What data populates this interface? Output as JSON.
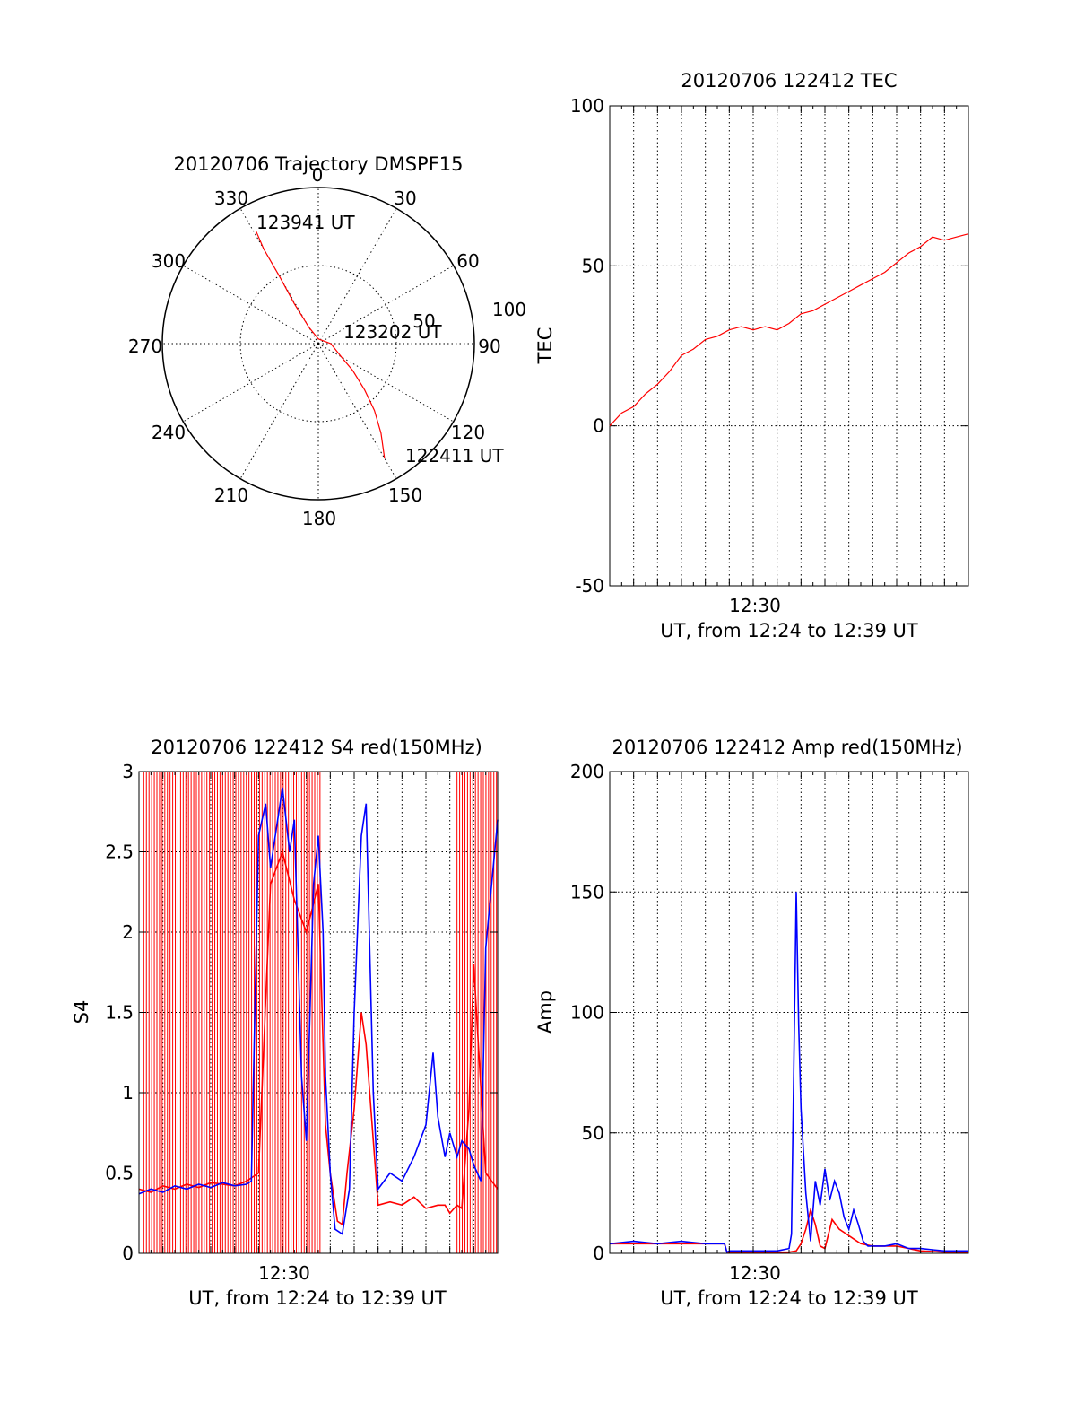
{
  "colors": {
    "red": "#ff0000",
    "blue": "#0000ff",
    "axis": "#000000"
  },
  "chart_data": [
    {
      "type": "polar",
      "title": "20120706 Trajectory DMSPF15",
      "angle_labels": [
        "0",
        "30",
        "60",
        "90",
        "120",
        "150",
        "180",
        "210",
        "240",
        "270",
        "300",
        "330"
      ],
      "radial_labels": [
        "50",
        "100"
      ],
      "rlim": [
        0,
        100
      ],
      "grid": true,
      "trajectory": [
        {
          "az": 150,
          "r": 85
        },
        {
          "az": 145,
          "r": 70
        },
        {
          "az": 140,
          "r": 56
        },
        {
          "az": 135,
          "r": 42
        },
        {
          "az": 128,
          "r": 28
        },
        {
          "az": 120,
          "r": 17
        },
        {
          "az": 90,
          "r": 8
        },
        {
          "az": 0,
          "r": 3
        },
        {
          "az": 330,
          "r": 12
        },
        {
          "az": 329,
          "r": 30
        },
        {
          "az": 330,
          "r": 50
        },
        {
          "az": 330,
          "r": 70
        },
        {
          "az": 331,
          "r": 82
        }
      ],
      "annotations": [
        "123941 UT",
        "123202 UT",
        "122411 UT"
      ]
    },
    {
      "type": "line",
      "title": "20120706 122412 TEC",
      "ylabel": "TEC",
      "xlabel": "UT, from 12:24 to 12:39 UT",
      "xticklabels": [
        "12:30"
      ],
      "xlim": [
        0,
        15
      ],
      "ylim": [
        -50,
        100
      ],
      "yticks": [
        -50,
        0,
        50,
        100
      ],
      "grid": true,
      "series": [
        {
          "color": "red",
          "x": [
            0.0,
            0.5,
            1.0,
            1.5,
            2.0,
            2.5,
            3.0,
            3.5,
            4.0,
            4.5,
            5.0,
            5.5,
            6.0,
            6.5,
            7.0,
            7.5,
            8.0,
            8.5,
            9.0,
            9.5,
            10.0,
            10.5,
            11.0,
            11.5,
            12.0,
            12.5,
            13.0,
            13.5,
            14.0,
            14.5,
            15.0
          ],
          "values": [
            0,
            4,
            6,
            10,
            13,
            17,
            22,
            24,
            27,
            28,
            30,
            31,
            30,
            31,
            30,
            32,
            35,
            36,
            38,
            40,
            42,
            44,
            46,
            48,
            51,
            54,
            56,
            59,
            58,
            59,
            60
          ]
        }
      ]
    },
    {
      "type": "line",
      "title": "20120706 122412 S4 red(150MHz)",
      "ylabel": "S4",
      "xlabel": "UT, from 12:24 to 12:39 UT",
      "xticklabels": [
        "12:30"
      ],
      "xlim": [
        0,
        15
      ],
      "ylim": [
        0,
        3
      ],
      "yticks": [
        0,
        0.5,
        1,
        1.5,
        2,
        2.5,
        3
      ],
      "yticklabels": [
        "0",
        "0.5",
        "1",
        "1.5",
        "2",
        "2.5",
        "3"
      ],
      "grid": true,
      "series": [
        {
          "color": "red",
          "x": [
            0.0,
            0.5,
            1.0,
            1.5,
            2.0,
            2.5,
            3.0,
            3.5,
            4.0,
            4.5,
            5.0,
            5.5,
            6.0,
            6.5,
            7.0,
            7.5,
            7.8,
            8.0,
            8.3,
            8.5,
            8.7,
            9.0,
            9.3,
            9.5,
            10.0,
            10.5,
            11.0,
            11.5,
            12.0,
            12.5,
            12.8,
            13.0,
            13.3,
            13.5,
            13.8,
            14.0,
            14.5,
            15.0
          ],
          "values": [
            0.4,
            0.38,
            0.42,
            0.4,
            0.43,
            0.41,
            0.44,
            0.43,
            0.42,
            0.45,
            0.5,
            2.3,
            2.5,
            2.2,
            2.0,
            2.3,
            0.8,
            0.5,
            0.2,
            0.18,
            0.5,
            0.9,
            1.5,
            1.3,
            0.3,
            0.32,
            0.3,
            0.35,
            0.28,
            0.3,
            0.3,
            0.25,
            0.3,
            0.28,
            0.9,
            1.8,
            0.5,
            0.4
          ]
        },
        {
          "color": "blue",
          "x": [
            0.0,
            0.5,
            1.0,
            1.5,
            2.0,
            2.5,
            3.0,
            3.5,
            4.0,
            4.5,
            4.7,
            5.0,
            5.3,
            5.5,
            5.8,
            6.0,
            6.3,
            6.5,
            6.8,
            7.0,
            7.3,
            7.5,
            7.7,
            7.8,
            8.0,
            8.2,
            8.5,
            8.8,
            9.0,
            9.3,
            9.5,
            9.8,
            10.0,
            10.5,
            11.0,
            11.5,
            12.0,
            12.3,
            12.5,
            12.8,
            13.0,
            13.3,
            13.5,
            13.8,
            14.0,
            14.3,
            14.5,
            15.0
          ],
          "values": [
            0.37,
            0.4,
            0.38,
            0.42,
            0.4,
            0.43,
            0.41,
            0.44,
            0.42,
            0.43,
            0.45,
            2.6,
            2.8,
            2.4,
            2.7,
            2.9,
            2.5,
            2.7,
            1.1,
            0.7,
            2.3,
            2.6,
            2.0,
            1.1,
            0.5,
            0.15,
            0.12,
            0.4,
            1.5,
            2.6,
            2.8,
            1.0,
            0.4,
            0.5,
            0.45,
            0.6,
            0.8,
            1.25,
            0.85,
            0.6,
            0.75,
            0.6,
            0.7,
            0.65,
            0.55,
            0.45,
            1.9,
            2.7
          ]
        }
      ]
    },
    {
      "type": "line",
      "title": "20120706 122412 Amp red(150MHz)",
      "ylabel": "Amp",
      "xlabel": "UT, from 12:24 to 12:39 UT",
      "xticklabels": [
        "12:30"
      ],
      "xlim": [
        0,
        15
      ],
      "ylim": [
        0,
        200
      ],
      "yticks": [
        0,
        50,
        100,
        150,
        200
      ],
      "grid": true,
      "series": [
        {
          "color": "red",
          "x": [
            0.0,
            1.0,
            2.0,
            3.0,
            4.0,
            4.8,
            4.9,
            5.0,
            6.0,
            7.0,
            7.5,
            7.8,
            8.0,
            8.2,
            8.4,
            8.6,
            8.8,
            9.0,
            9.3,
            9.6,
            9.9,
            10.2,
            10.5,
            11.0,
            12.0,
            13.0,
            14.0,
            15.0
          ],
          "values": [
            4,
            4,
            4,
            4,
            4,
            4,
            0.5,
            0.5,
            0.5,
            0.5,
            0.5,
            1,
            4,
            10,
            18,
            12,
            3,
            2,
            14,
            10,
            8,
            6,
            4,
            3,
            3,
            1,
            0.5,
            0.5
          ]
        },
        {
          "color": "blue",
          "x": [
            0.0,
            1.0,
            2.0,
            3.0,
            4.0,
            4.8,
            4.9,
            5.0,
            6.0,
            7.0,
            7.5,
            7.6,
            7.8,
            7.9,
            8.0,
            8.2,
            8.4,
            8.6,
            8.8,
            9.0,
            9.2,
            9.4,
            9.6,
            9.8,
            10.0,
            10.2,
            10.4,
            10.6,
            10.8,
            11.0,
            11.5,
            12.0,
            12.5,
            13.0,
            13.5,
            14.0,
            14.5,
            15.0
          ],
          "values": [
            4,
            5,
            4,
            5,
            4,
            4,
            0.5,
            1,
            1,
            1,
            2,
            8,
            150,
            95,
            60,
            25,
            5,
            30,
            20,
            35,
            22,
            30,
            25,
            15,
            10,
            18,
            12,
            5,
            3,
            3,
            3,
            4,
            2,
            2,
            1.5,
            1,
            1,
            1
          ]
        }
      ]
    }
  ]
}
